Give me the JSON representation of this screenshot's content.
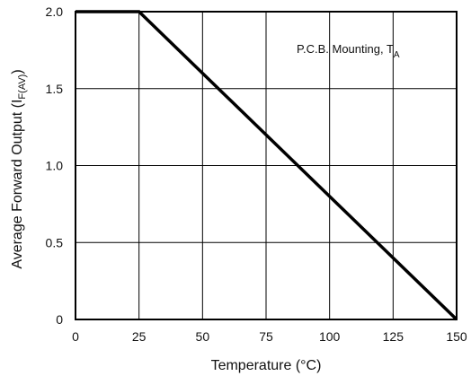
{
  "chart_data": {
    "type": "line",
    "title": "",
    "xlabel": "Temperature (°C)",
    "ylabel": {
      "prefix": "Average Forward Output (I",
      "subscript": "F(AV)",
      "suffix": ")"
    },
    "xlim": [
      0,
      150
    ],
    "ylim": [
      0,
      2.0
    ],
    "x_ticks": [
      0,
      25,
      50,
      75,
      100,
      125,
      150
    ],
    "y_ticks": [
      0,
      0.5,
      1.0,
      1.5,
      2.0
    ],
    "x_tick_labels": [
      "0",
      "25",
      "50",
      "75",
      "100",
      "125",
      "150"
    ],
    "y_tick_labels": [
      "0",
      "0.5",
      "1.0",
      "1.5",
      "2.0"
    ],
    "grid": true,
    "series": [
      {
        "name": "",
        "x": [
          0,
          25,
          150
        ],
        "y": [
          2.0,
          2.0,
          0
        ],
        "color": "#000000"
      }
    ],
    "annotation": {
      "text": "P.C.B. Mounting, T",
      "subscript": "A"
    }
  }
}
